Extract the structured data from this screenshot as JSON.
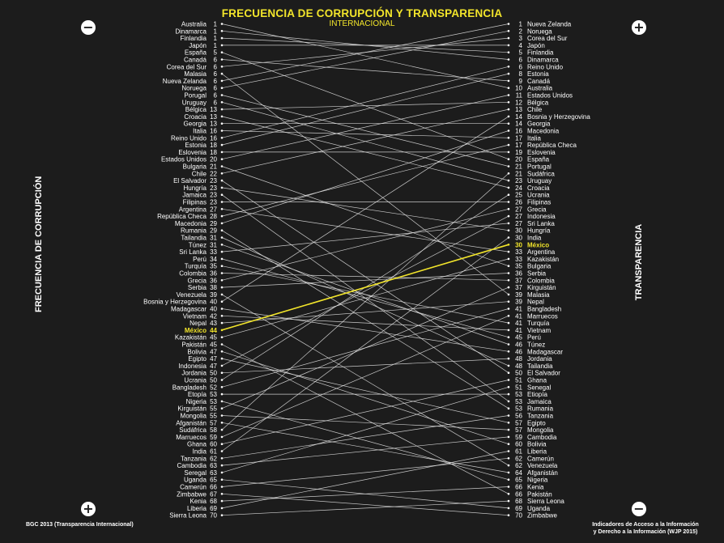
{
  "header": {
    "title": "FRECUENCIA DE CORRUPCIÓN Y TRANSPARENCIA",
    "subtitle": "INTERNACIONAL"
  },
  "left_axis_title": "FRECUENCIA DE CORRUPCIÓN",
  "right_axis_title": "TRANSPARENCIA",
  "icons": {
    "top_left": "minus-circle-icon",
    "top_right": "plus-circle-icon",
    "bottom_left": "plus-circle-icon",
    "bottom_right": "minus-circle-icon"
  },
  "footer": {
    "left_source": "BGC 2013 (Transparencia Internacional)",
    "right_source_line1": "Indicadores de Acceso a la Información",
    "right_source_line2": "y Derecho a la Información (WJP 2015)"
  },
  "colors": {
    "background": "#1c1c1c",
    "highlight": "#f2e52b",
    "text": "#ffffff",
    "lines": "#e8e8e8"
  },
  "chart_data": {
    "type": "slope",
    "highlight": "México",
    "left": {
      "names": [
        "Australia",
        "Dinamarca",
        "Finlandia",
        "Japón",
        "España",
        "Canadá",
        "Corea del Sur",
        "Malasia",
        "Nueva Zelanda",
        "Noruega",
        "Porugal",
        "Uruguay",
        "Bélgica",
        "Croacia",
        "Georgia",
        "Italia",
        "Reino Unido",
        "Estonia",
        "Eslovenia",
        "Estados Unidos",
        "Bulgaria",
        "Chile",
        "El Salvador",
        "Hungría",
        "Jamaica",
        "Filipinas",
        "Argentina",
        "República Checa",
        "Macedonia",
        "Rumania",
        "Tailandia",
        "Túnez",
        "Sri Lanka",
        "Perú",
        "Turquía",
        "Colombia",
        "Grecia",
        "Serbia",
        "Venezuela",
        "Bosnia y Herzegovina",
        "Madagascar",
        "Vietnam",
        "Nepal",
        "México",
        "Kazakistán",
        "Pakistán",
        "Bolivia",
        "Egipto",
        "Indonesia",
        "Jordania",
        "Ucrania",
        "Bangladesh",
        "Etopía",
        "Nigeria",
        "Kirguistán",
        "Mongolia",
        "Afganistán",
        "Sudáfrica",
        "Marruecos",
        "Ghana",
        "India",
        "Tanzania",
        "Cambodia",
        "Seregal",
        "Uganda",
        "Camerún",
        "Zimbabwe",
        "Kenia",
        "Liberia",
        "Sierra Leona"
      ],
      "ranks": [
        1,
        1,
        1,
        1,
        5,
        6,
        6,
        6,
        6,
        6,
        6,
        6,
        13,
        13,
        13,
        16,
        16,
        18,
        18,
        20,
        21,
        22,
        23,
        23,
        23,
        23,
        27,
        28,
        29,
        29,
        31,
        31,
        33,
        34,
        35,
        36,
        36,
        38,
        39,
        40,
        40,
        42,
        43,
        44,
        45,
        45,
        47,
        47,
        47,
        50,
        50,
        52,
        53,
        53,
        55,
        55,
        57,
        58,
        59,
        60,
        61,
        62,
        63,
        63,
        65,
        66,
        67,
        68,
        69,
        70
      ]
    },
    "right": {
      "names": [
        "Nueva Zelanda",
        "Noruega",
        "Corea del Sur",
        "Japón",
        "Finlandia",
        "Dinamarca",
        "Reino Unido",
        "Estonia",
        "Canadá",
        "Australia",
        "Estados Unidos",
        "Bélgica",
        "Chile",
        "Bosnia y Herzegovina",
        "Georgia",
        "Macedonia",
        "Italia",
        "República Checa",
        "Eslovenia",
        "España",
        "Portugal",
        "Sudáfrica",
        "Uruguay",
        "Croacia",
        "Ucrania",
        "Filipinas",
        "Grecia",
        "Indonesia",
        "Sri Lanka",
        "Hungría",
        "India",
        "México",
        "Argentina",
        "Kazakistán",
        "Bulgaria",
        "Serbia",
        "Colombia",
        "Kirguistán",
        "Malasia",
        "Nepal",
        "Bangladesh",
        "Marruecos",
        "Turquía",
        "Vietnam",
        "Perú",
        "Túnez",
        "Madagascar",
        "Jordania",
        "Tailandia",
        "El Salvador",
        "Ghana",
        "Senegal",
        "Etiopía",
        "Jamaica",
        "Rumania",
        "Tanzania",
        "Egipto",
        "Mongolia",
        "Cambodia",
        "Bolivia",
        "Liberia",
        "Camerún",
        "Venezuela",
        "Afganistán",
        "Nigeria",
        "Kenia",
        "Pakistán",
        "Sierra Leona",
        "Uganda",
        "Zimbabwe"
      ],
      "ranks": [
        1,
        2,
        3,
        4,
        5,
        6,
        6,
        8,
        9,
        10,
        11,
        12,
        13,
        14,
        14,
        16,
        17,
        17,
        19,
        20,
        21,
        21,
        23,
        24,
        25,
        26,
        27,
        27,
        27,
        30,
        30,
        30,
        33,
        33,
        35,
        36,
        37,
        37,
        39,
        39,
        41,
        41,
        41,
        41,
        45,
        46,
        46,
        48,
        48,
        50,
        51,
        51,
        53,
        53,
        53,
        56,
        57,
        57,
        59,
        60,
        61,
        62,
        62,
        64,
        65,
        66,
        66,
        68,
        69,
        70
      ]
    },
    "links": [
      [
        "Australia",
        "Australia"
      ],
      [
        "Dinamarca",
        "Dinamarca"
      ],
      [
        "Finlandia",
        "Finlandia"
      ],
      [
        "Japón",
        "Japón"
      ],
      [
        "España",
        "España"
      ],
      [
        "Canadá",
        "Canadá"
      ],
      [
        "Corea del Sur",
        "Corea del Sur"
      ],
      [
        "Malasia",
        "Malasia"
      ],
      [
        "Nueva Zelanda",
        "Nueva Zelanda"
      ],
      [
        "Noruega",
        "Noruega"
      ],
      [
        "Porugal",
        "Portugal"
      ],
      [
        "Uruguay",
        "Uruguay"
      ],
      [
        "Bélgica",
        "Bélgica"
      ],
      [
        "Croacia",
        "Croacia"
      ],
      [
        "Georgia",
        "Georgia"
      ],
      [
        "Italia",
        "Italia"
      ],
      [
        "Reino Unido",
        "Reino Unido"
      ],
      [
        "Estonia",
        "Estonia"
      ],
      [
        "Eslovenia",
        "Eslovenia"
      ],
      [
        "Estados Unidos",
        "Estados Unidos"
      ],
      [
        "Bulgaria",
        "Bulgaria"
      ],
      [
        "Chile",
        "Chile"
      ],
      [
        "El Salvador",
        "El Salvador"
      ],
      [
        "Hungría",
        "Hungría"
      ],
      [
        "Jamaica",
        "Jamaica"
      ],
      [
        "Filipinas",
        "Filipinas"
      ],
      [
        "Argentina",
        "Argentina"
      ],
      [
        "República Checa",
        "República Checa"
      ],
      [
        "Macedonia",
        "Macedonia"
      ],
      [
        "Rumania",
        "Rumania"
      ],
      [
        "Tailandia",
        "Tailandia"
      ],
      [
        "Túnez",
        "Túnez"
      ],
      [
        "Sri Lanka",
        "Sri Lanka"
      ],
      [
        "Perú",
        "Perú"
      ],
      [
        "Turquía",
        "Turquía"
      ],
      [
        "Colombia",
        "Colombia"
      ],
      [
        "Grecia",
        "Grecia"
      ],
      [
        "Serbia",
        "Serbia"
      ],
      [
        "Venezuela",
        "Venezuela"
      ],
      [
        "Bosnia y Herzegovina",
        "Bosnia y Herzegovina"
      ],
      [
        "Madagascar",
        "Madagascar"
      ],
      [
        "Vietnam",
        "Vietnam"
      ],
      [
        "Nepal",
        "Nepal"
      ],
      [
        "México",
        "México"
      ],
      [
        "Kazakistán",
        "Kazakistán"
      ],
      [
        "Pakistán",
        "Pakistán"
      ],
      [
        "Bolivia",
        "Bolivia"
      ],
      [
        "Egipto",
        "Egipto"
      ],
      [
        "Indonesia",
        "Indonesia"
      ],
      [
        "Jordania",
        "Jordania"
      ],
      [
        "Ucrania",
        "Ucrania"
      ],
      [
        "Bangladesh",
        "Bangladesh"
      ],
      [
        "Etopía",
        "Etiopía"
      ],
      [
        "Nigeria",
        "Nigeria"
      ],
      [
        "Kirguistán",
        "Kirguistán"
      ],
      [
        "Mongolia",
        "Mongolia"
      ],
      [
        "Afganistán",
        "Afganistán"
      ],
      [
        "Sudáfrica",
        "Sudáfrica"
      ],
      [
        "Marruecos",
        "Marruecos"
      ],
      [
        "Ghana",
        "Ghana"
      ],
      [
        "India",
        "India"
      ],
      [
        "Tanzania",
        "Tanzania"
      ],
      [
        "Cambodia",
        "Cambodia"
      ],
      [
        "Seregal",
        "Senegal"
      ],
      [
        "Uganda",
        "Uganda"
      ],
      [
        "Camerún",
        "Camerún"
      ],
      [
        "Zimbabwe",
        "Zimbabwe"
      ],
      [
        "Kenia",
        "Kenia"
      ],
      [
        "Liberia",
        "Liberia"
      ],
      [
        "Sierra Leona",
        "Sierra Leona"
      ]
    ]
  }
}
